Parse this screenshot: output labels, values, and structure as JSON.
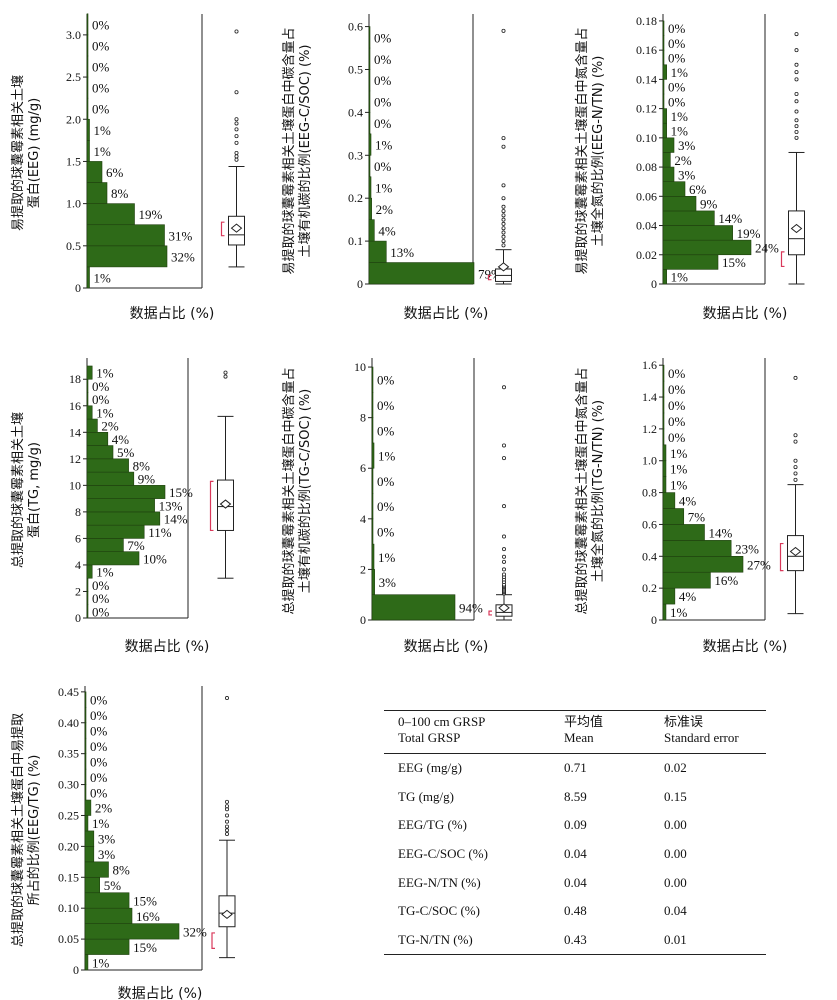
{
  "chart_data": [
    {
      "type": "bar",
      "ylabel": "易提取的球囊霉素相关土壤蛋白(EEG) (mg/g)",
      "xlabel": "数据占比 (%)",
      "ylim": [
        0,
        3.2
      ],
      "yticks": [
        "0",
        "0.5",
        "1.0",
        "1.5",
        "2.0",
        "2.5",
        "3.0"
      ],
      "bin_width": 0.25,
      "bins": [
        0,
        0.25,
        0.5,
        0.75,
        1.0,
        1.25,
        1.5,
        1.75,
        2.0,
        2.25,
        2.5,
        2.75,
        3.0
      ],
      "values": [
        1,
        32,
        31,
        19,
        8,
        6,
        1,
        1,
        0,
        0,
        0,
        0,
        0
      ],
      "value_labels": [
        "1%",
        "32%",
        "31%",
        "19%",
        "8%",
        "6%",
        "1%",
        "1%",
        "0%",
        "0%",
        "0%",
        "0%",
        "0%"
      ],
      "boxplot": {
        "whisker_low": 0.25,
        "q1": 0.51,
        "median": 0.63,
        "q3": 0.85,
        "whisker_high": 1.44,
        "mean": 0.71,
        "mean_error_low": 0.62,
        "mean_error_high": 0.78,
        "outliers": [
          1.52,
          1.56,
          1.6,
          1.72,
          1.8,
          1.88,
          1.95,
          2.0,
          2.32,
          3.04
        ]
      }
    },
    {
      "type": "bar",
      "ylabel": "易提取的球囊霉素相关土壤蛋白中碳含量占土壤有机碳的比例(EEG-C/SOC) (%)",
      "xlabel": "数据占比 (%)",
      "ylim": [
        0,
        0.62
      ],
      "yticks": [
        "0",
        "0.1",
        "0.2",
        "0.3",
        "0.4",
        "0.5",
        "0.6"
      ],
      "bin_width": 0.05,
      "bins": [
        0,
        0.05,
        0.1,
        0.15,
        0.2,
        0.25,
        0.3,
        0.35,
        0.4,
        0.45,
        0.5,
        0.55
      ],
      "values": [
        79,
        13,
        4,
        2,
        1,
        0,
        1,
        0,
        0,
        0,
        0,
        0
      ],
      "value_labels": [
        "79%",
        "13%",
        "4%",
        "2%",
        "1%",
        "0%",
        "1%",
        "0%",
        "0%",
        "0%",
        "0%",
        "0%"
      ],
      "boxplot": {
        "whisker_low": 0.0,
        "q1": 0.006,
        "median": 0.02,
        "q3": 0.035,
        "whisker_high": 0.08,
        "mean": 0.04,
        "mean_error_low": 0.01,
        "mean_error_high": 0.02,
        "outliers": [
          0.09,
          0.1,
          0.11,
          0.12,
          0.13,
          0.14,
          0.15,
          0.16,
          0.17,
          0.18,
          0.2,
          0.23,
          0.32,
          0.34,
          0.59
        ]
      }
    },
    {
      "type": "bar",
      "ylabel": "易提取的球囊霉素相关土壤蛋白中氮含量占土壤全氮的比例(EEG-N/TN) (%)",
      "xlabel": "数据占比 (%)",
      "ylim": [
        0,
        0.182
      ],
      "yticks": [
        "0",
        "0.02",
        "0.04",
        "0.06",
        "0.08",
        "0.10",
        "0.12",
        "0.14",
        "0.16",
        "0.18"
      ],
      "bin_width": 0.01,
      "bins": [
        0,
        0.01,
        0.02,
        0.03,
        0.04,
        0.05,
        0.06,
        0.07,
        0.08,
        0.09,
        0.1,
        0.11,
        0.12,
        0.13,
        0.14,
        0.15,
        0.16,
        0.17
      ],
      "values": [
        1,
        15,
        24,
        19,
        14,
        9,
        6,
        3,
        2,
        3,
        1,
        1,
        0,
        0,
        1,
        0,
        0,
        0
      ],
      "value_labels": [
        "1%",
        "15%",
        "24%",
        "19%",
        "14%",
        "9%",
        "6%",
        "3%",
        "2%",
        "3%",
        "1%",
        "1%",
        "0%",
        "0%",
        "1%",
        "0%",
        "0%",
        "0%"
      ],
      "boxplot": {
        "whisker_low": 0.0,
        "q1": 0.02,
        "median": 0.031,
        "q3": 0.05,
        "whisker_high": 0.09,
        "mean": 0.038,
        "mean_error_low": 0.012,
        "mean_error_high": 0.022,
        "outliers": [
          0.1,
          0.104,
          0.108,
          0.112,
          0.118,
          0.125,
          0.13,
          0.14,
          0.145,
          0.15,
          0.16,
          0.171
        ]
      }
    },
    {
      "type": "bar",
      "ylabel": "总提取的球囊霉素相关土壤蛋白(TG, mg/g)",
      "xlabel": "数据占比 (%)",
      "ylim": [
        0,
        19.3
      ],
      "yticks": [
        "0",
        "2",
        "4",
        "6",
        "8",
        "10",
        "12",
        "14",
        "16",
        "18"
      ],
      "bin_width": 1,
      "bins": [
        0,
        1,
        2,
        3,
        4,
        5,
        6,
        7,
        8,
        9,
        10,
        11,
        12,
        13,
        14,
        15,
        16,
        17,
        18
      ],
      "values": [
        0,
        0,
        0,
        1,
        10,
        7,
        11,
        14,
        13,
        15,
        9,
        8,
        5,
        4,
        2,
        1,
        0,
        0,
        1
      ],
      "value_labels": [
        "0%",
        "0%",
        "0%",
        "1%",
        "10%",
        "7%",
        "11%",
        "14%",
        "13%",
        "15%",
        "9%",
        "8%",
        "5%",
        "4%",
        "2%",
        "1%",
        "0%",
        "0%",
        "1%"
      ],
      "boxplot": {
        "whisker_low": 3.0,
        "q1": 6.6,
        "median": 8.4,
        "q3": 10.4,
        "whisker_high": 15.2,
        "mean": 8.59,
        "mean_error_low": 6.6,
        "mean_error_high": 10.3,
        "outliers": [
          18.2,
          18.5
        ]
      }
    },
    {
      "type": "bar",
      "ylabel": "总提取的球囊霉素相关土壤蛋白中碳含量占土壤有机碳的比例(TG-C/SOC) (%)",
      "xlabel": "数据占比 (%)",
      "ylim": [
        0,
        10.2
      ],
      "yticks": [
        "0",
        "2",
        "4",
        "6",
        "8",
        "10"
      ],
      "bin_width": 1,
      "bins": [
        0,
        1,
        2,
        3,
        4,
        5,
        6,
        7,
        8,
        9
      ],
      "values": [
        94,
        3,
        1,
        0,
        0,
        0,
        1,
        0,
        0,
        0
      ],
      "value_labels": [
        "94%",
        "3%",
        "1%",
        "0%",
        "0%",
        "0%",
        "1%",
        "0%",
        "0%",
        "0%"
      ],
      "boxplot": {
        "whisker_low": 0.0,
        "q1": 0.15,
        "median": 0.3,
        "q3": 0.6,
        "whisker_high": 1.0,
        "mean": 0.48,
        "mean_error_low": 0.2,
        "mean_error_high": 0.35,
        "outliers": [
          1.05,
          1.1,
          1.15,
          1.2,
          1.25,
          1.3,
          1.35,
          1.4,
          1.5,
          1.6,
          1.7,
          1.8,
          2.0,
          2.3,
          2.5,
          2.8,
          3.3,
          4.5,
          6.4,
          6.9,
          9.2
        ]
      }
    },
    {
      "type": "bar",
      "ylabel": "总提取的球囊霉素相关土壤蛋白中氮含量占土壤全氮的比例(TG-N/TN) (%)",
      "xlabel": "数据占比 (%)",
      "ylim": [
        0,
        1.62
      ],
      "yticks": [
        "0",
        "0.2",
        "0.4",
        "0.6",
        "0.8",
        "1.0",
        "1.2",
        "1.4",
        "1.6"
      ],
      "bin_width": 0.1,
      "bins": [
        0,
        0.1,
        0.2,
        0.3,
        0.4,
        0.5,
        0.6,
        0.7,
        0.8,
        0.9,
        1.0,
        1.1,
        1.2,
        1.3,
        1.4,
        1.5
      ],
      "values": [
        1,
        4,
        16,
        27,
        23,
        14,
        7,
        4,
        1,
        1,
        1,
        0,
        0,
        0,
        0,
        0
      ],
      "value_labels": [
        "1%",
        "4%",
        "16%",
        "27%",
        "23%",
        "14%",
        "7%",
        "4%",
        "1%",
        "1%",
        "1%",
        "0%",
        "0%",
        "0%",
        "0%",
        "0%"
      ],
      "boxplot": {
        "whisker_low": 0.04,
        "q1": 0.31,
        "median": 0.4,
        "q3": 0.53,
        "whisker_high": 0.85,
        "mean": 0.43,
        "mean_error_low": 0.31,
        "mean_error_high": 0.48,
        "outliers": [
          0.88,
          0.92,
          0.96,
          1.0,
          1.12,
          1.16,
          1.52
        ]
      }
    },
    {
      "type": "bar",
      "ylabel": "总提取的球囊霉素相关土壤蛋白中易提取所占的比例(EEG/TG) (%)",
      "xlabel": "数据占比 (%)",
      "ylim": [
        0,
        0.453
      ],
      "yticks": [
        "0",
        "0.05",
        "0.10",
        "0.15",
        "0.20",
        "0.25",
        "0.30",
        "0.35",
        "0.40",
        "0.45"
      ],
      "bin_width": 0.025,
      "bins": [
        0,
        0.025,
        0.05,
        0.075,
        0.1,
        0.125,
        0.15,
        0.175,
        0.2,
        0.225,
        0.25,
        0.275,
        0.3,
        0.325,
        0.35,
        0.375,
        0.4,
        0.425
      ],
      "values": [
        1,
        15,
        32,
        16,
        15,
        5,
        8,
        3,
        3,
        1,
        2,
        0,
        0,
        0,
        0,
        0,
        0,
        0
      ],
      "value_labels": [
        "1%",
        "15%",
        "32%",
        "16%",
        "15%",
        "5%",
        "8%",
        "3%",
        "3%",
        "1%",
        "2%",
        "0%",
        "0%",
        "0%",
        "0%",
        "0%",
        "0%",
        "0%"
      ],
      "boxplot": {
        "whisker_low": 0.02,
        "q1": 0.07,
        "median": 0.092,
        "q3": 0.12,
        "whisker_high": 0.21,
        "mean": 0.09,
        "mean_error_low": 0.035,
        "mean_error_high": 0.06,
        "outliers": [
          0.22,
          0.226,
          0.232,
          0.24,
          0.25,
          0.26,
          0.265,
          0.272,
          0.44
        ]
      }
    }
  ],
  "table": {
    "header": {
      "col1_line1": "0–100 cm GRSP",
      "col1_line2": "Total GRSP",
      "col2_line1": "平均值",
      "col2_line2": "Mean",
      "col3_line1": "标准误",
      "col3_line2": "Standard error"
    },
    "rows": [
      {
        "name": "EEG (mg/g)",
        "mean": "0.71",
        "se": "0.02"
      },
      {
        "name": "TG (mg/g)",
        "mean": "8.59",
        "se": "0.15"
      },
      {
        "name": "EEG/TG (%)",
        "mean": "0.09",
        "se": "0.00"
      },
      {
        "name": "EEG-C/SOC (%)",
        "mean": "0.04",
        "se": "0.00"
      },
      {
        "name": "EEG-N/TN (%)",
        "mean": "0.04",
        "se": "0.00"
      },
      {
        "name": "TG-C/SOC (%)",
        "mean": "0.48",
        "se": "0.04"
      },
      {
        "name": "TG-N/TN (%)",
        "mean": "0.43",
        "se": "0.01"
      }
    ]
  },
  "colors": {
    "bar": "#2e6a18",
    "error_bar": "#d9385a",
    "axis": "#222222"
  }
}
